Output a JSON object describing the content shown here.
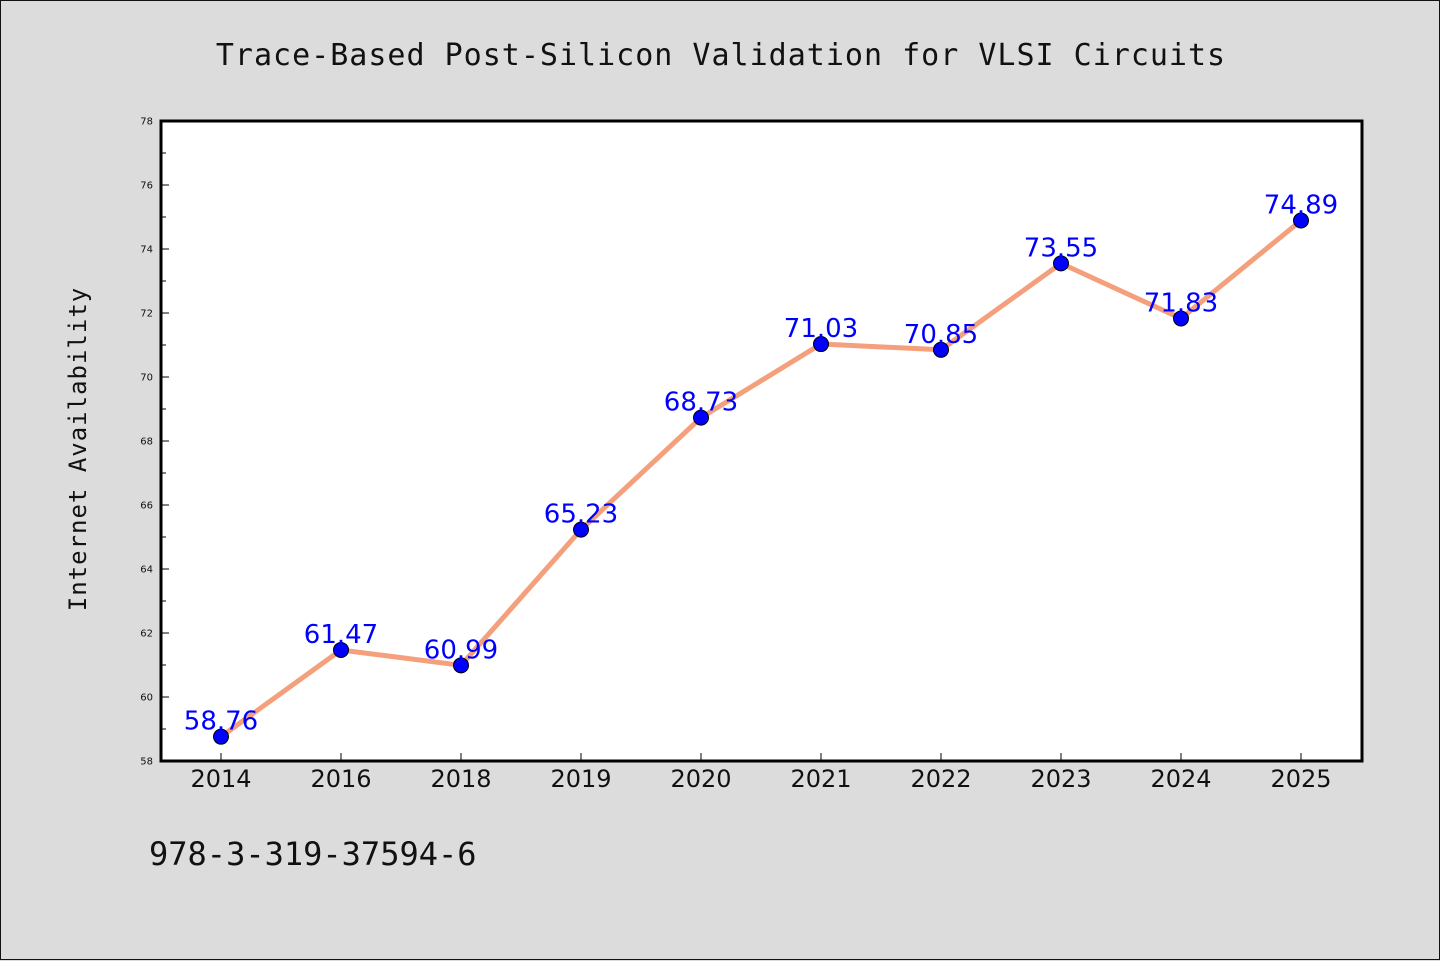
{
  "chart_data": {
    "type": "line",
    "title": "Trace-Based Post-Silicon Validation for VLSI Circuits",
    "xlabel": "",
    "ylabel": "Internet Availability",
    "categories": [
      "2014",
      "2016",
      "2018",
      "2019",
      "2020",
      "2021",
      "2022",
      "2023",
      "2024",
      "2025"
    ],
    "series": [
      {
        "values": [
          58.76,
          61.47,
          60.99,
          65.23,
          68.73,
          71.03,
          70.85,
          73.55,
          71.83,
          74.89
        ],
        "data_labels": [
          "58.76",
          "61.47",
          "60.99",
          "65.23",
          "68.73",
          "71.03",
          "70.85",
          "73.55",
          "71.83",
          "74.89"
        ]
      }
    ],
    "ylim": [
      58,
      78
    ],
    "yticks": [
      "58",
      "60",
      "62",
      "64",
      "66",
      "68",
      "70",
      "72",
      "74",
      "76",
      "78"
    ],
    "grid": false,
    "legend": "none",
    "colors": {
      "line": "#f4a07c",
      "marker": "#0000ff",
      "label": "#0000ff",
      "background": "#dcdcdc",
      "plot_background": "#ffffff"
    }
  },
  "footer": {
    "isbn": "978-3-319-37594-6"
  }
}
